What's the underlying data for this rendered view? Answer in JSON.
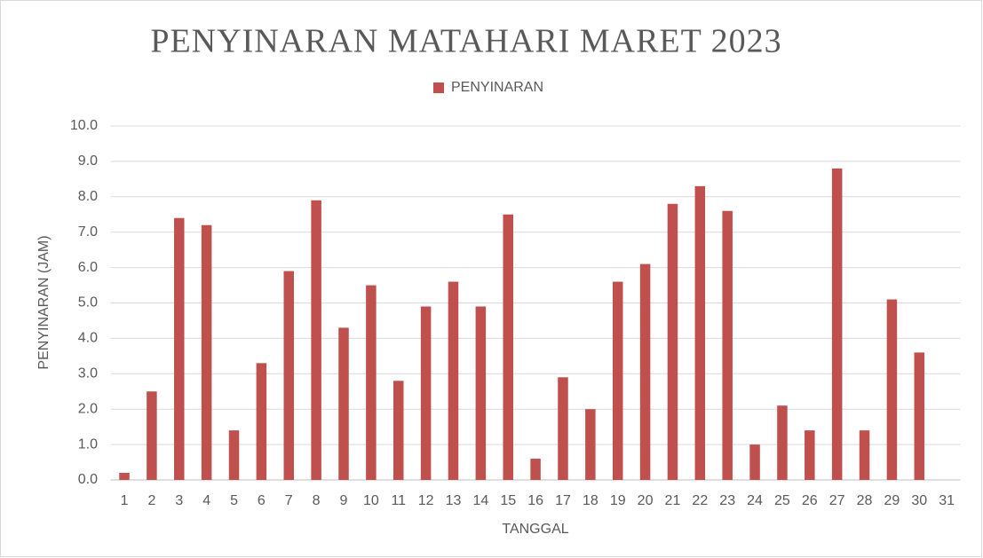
{
  "chart_data": {
    "type": "bar",
    "title": "PENYINARAN MATAHARI MARET 2023",
    "x_label": "TANGGAL",
    "y_label": "PENYINARAN (JAM)",
    "categories": [
      "1",
      "2",
      "3",
      "4",
      "5",
      "6",
      "7",
      "8",
      "9",
      "10",
      "11",
      "12",
      "13",
      "14",
      "15",
      "16",
      "17",
      "18",
      "19",
      "20",
      "21",
      "22",
      "23",
      "24",
      "25",
      "26",
      "27",
      "28",
      "29",
      "30",
      "31"
    ],
    "series": [
      {
        "name": "PENYINARAN",
        "color": "#c0504d",
        "values": [
          0.2,
          2.5,
          7.4,
          7.2,
          1.4,
          3.3,
          5.9,
          7.9,
          4.3,
          5.5,
          2.8,
          4.9,
          5.6,
          4.9,
          7.5,
          0.6,
          2.9,
          2.0,
          5.6,
          6.1,
          7.8,
          8.3,
          7.6,
          1.0,
          2.1,
          1.4,
          8.8,
          1.4,
          5.1,
          3.6,
          null
        ]
      }
    ],
    "ylim": [
      0,
      10
    ],
    "yticks": [
      {
        "value": 0,
        "label": "0.0"
      },
      {
        "value": 1,
        "label": "1.0"
      },
      {
        "value": 2,
        "label": "2.0"
      },
      {
        "value": 3,
        "label": "3.0"
      },
      {
        "value": 4,
        "label": "4.0"
      },
      {
        "value": 5,
        "label": "5.0"
      },
      {
        "value": 6,
        "label": "6.0"
      },
      {
        "value": 7,
        "label": "7.0"
      },
      {
        "value": 8,
        "label": "8.0"
      },
      {
        "value": 9,
        "label": "9.0"
      },
      {
        "value": 10,
        "label": "10.0"
      }
    ],
    "grid": true,
    "legend": "top"
  }
}
